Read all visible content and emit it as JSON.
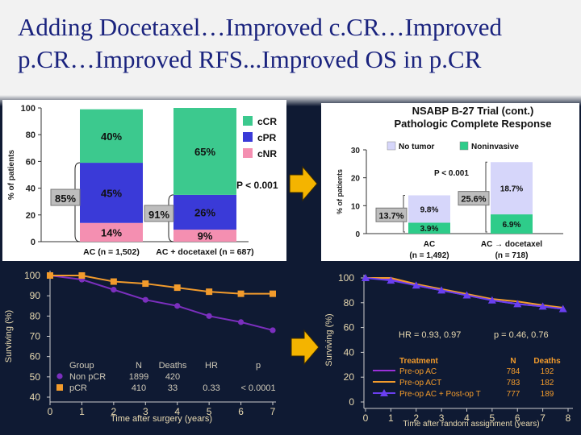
{
  "slide": {
    "title_line1": "Adding Docetaxel…Improved c.CR…Improved",
    "title_line2": "p.CR…Improved RFS...Improved OS in p.CR",
    "colors": {
      "title": "#1a237e",
      "background_bottom": "#0f1a33",
      "arrow": "#f4b400"
    }
  },
  "chart_data": [
    {
      "type": "bar",
      "stacked": true,
      "ylabel": "% of patients",
      "ylim": [
        0,
        100
      ],
      "yticks": [
        0,
        20,
        40,
        60,
        80,
        100
      ],
      "categories": [
        "AC (n = 1,502)",
        "AC + docetaxel (n = 687)"
      ],
      "series": [
        {
          "name": "cNR",
          "values": [
            14,
            9
          ],
          "labels": [
            "14%",
            "9%"
          ],
          "color": "#f48fb1"
        },
        {
          "name": "cPR",
          "values": [
            45,
            26
          ],
          "labels": [
            "45%",
            "26%"
          ],
          "color": "#3a3ad8"
        },
        {
          "name": "cCR",
          "values": [
            40,
            65
          ],
          "labels": [
            "40%",
            "65%"
          ],
          "color": "#3cc98e"
        }
      ],
      "bracket_labels": [
        "85%",
        "91%"
      ],
      "annotation": "P < 0.001",
      "legend_position": "right"
    },
    {
      "type": "bar",
      "stacked": true,
      "title_line1": "NSABP B-27 Trial (cont.)",
      "title_line2": "Pathologic Complete Response",
      "ylabel": "% of patients",
      "ylim": [
        0,
        30
      ],
      "yticks": [
        0,
        10,
        20,
        30
      ],
      "categories": [
        "AC",
        "AC → docetaxel"
      ],
      "category_sublabels": [
        "(n = 1,492)",
        "(n = 718)"
      ],
      "series": [
        {
          "name": "Noninvasive",
          "values": [
            3.9,
            6.9
          ],
          "labels": [
            "3.9%",
            "6.9%"
          ],
          "color": "#2ecc8a"
        },
        {
          "name": "No tumor",
          "values": [
            9.8,
            18.7
          ],
          "labels": [
            "9.8%",
            "18.7%"
          ],
          "color": "#d6d6fa"
        }
      ],
      "bracket_labels": [
        "13.7%",
        "25.6%"
      ],
      "annotation": "P < 0.001",
      "legend_position": "top"
    },
    {
      "type": "line",
      "ylabel": "Surviving (%)",
      "xlabel": "Time after surgery (years)",
      "ylim": [
        40,
        100
      ],
      "xlim": [
        0,
        7
      ],
      "yticks": [
        40,
        50,
        60,
        70,
        80,
        90,
        100
      ],
      "xticks": [
        0,
        1,
        2,
        3,
        4,
        5,
        6,
        7
      ],
      "series": [
        {
          "name": "Non pCR",
          "color": "#7b2fbe",
          "marker": "circle",
          "x": [
            0,
            1,
            2,
            3,
            4,
            5,
            6,
            7
          ],
          "y": [
            100,
            98,
            93,
            88,
            85,
            80,
            77,
            73
          ]
        },
        {
          "name": "pCR",
          "color": "#f29b2c",
          "marker": "square",
          "x": [
            0,
            1,
            2,
            3,
            4,
            5,
            6,
            7
          ],
          "y": [
            100,
            100,
            97,
            96,
            94,
            92,
            91,
            91
          ]
        }
      ],
      "table": {
        "headers": [
          "Group",
          "N",
          "Deaths",
          "HR",
          "p"
        ],
        "rows": [
          [
            "Non pCR",
            "1899",
            "420",
            "",
            ""
          ],
          [
            "pCR",
            "410",
            "33",
            "0.33",
            "< 0.0001"
          ]
        ]
      }
    },
    {
      "type": "line",
      "ylabel": "Surviving (%)",
      "xlabel": "Time after random assignment (years)",
      "ylim": [
        0,
        100
      ],
      "xlim": [
        0,
        8
      ],
      "yticks": [
        0,
        20,
        40,
        60,
        80,
        100
      ],
      "xticks": [
        0,
        1,
        2,
        3,
        4,
        5,
        6,
        7,
        8
      ],
      "annotation_left": "HR = 0.93, 0.97",
      "annotation_right": "p = 0.46, 0.76",
      "series": [
        {
          "name": "Pre-op AC",
          "color": "#9b30d9",
          "marker": "none",
          "x": [
            0,
            1,
            2,
            3,
            4,
            5,
            6,
            7,
            7.8
          ],
          "y": [
            100,
            99,
            94,
            90,
            86,
            82,
            79,
            77,
            75
          ]
        },
        {
          "name": "Pre-op ACT",
          "color": "#f29b2c",
          "marker": "none",
          "x": [
            0,
            1,
            2,
            3,
            4,
            5,
            6,
            7,
            7.8
          ],
          "y": [
            100,
            100,
            95,
            91,
            87,
            83,
            81,
            78,
            76
          ]
        },
        {
          "name": "Pre-op AC + Post-op T",
          "color": "#6a3ff0",
          "marker": "triangle",
          "x": [
            0,
            1,
            2,
            3,
            4,
            5,
            6,
            7,
            7.8
          ],
          "y": [
            100,
            98,
            94,
            90,
            86,
            82,
            79,
            77,
            75
          ]
        }
      ],
      "table": {
        "headers": [
          "Treatment",
          "N",
          "Deaths"
        ],
        "rows": [
          [
            "Pre-op AC",
            "784",
            "192"
          ],
          [
            "Pre-op ACT",
            "783",
            "182"
          ],
          [
            "Pre-op AC + Post-op T",
            "777",
            "189"
          ]
        ]
      }
    }
  ]
}
